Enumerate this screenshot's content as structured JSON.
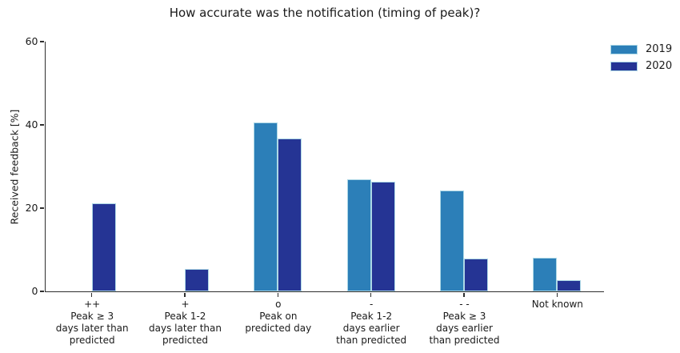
{
  "chart_data": {
    "type": "bar",
    "title": "How accurate was the notification (timing of peak)?",
    "ylabel": "Received feedback [%]",
    "ylim": [
      0,
      60
    ],
    "yticks": [
      0,
      20,
      40,
      60
    ],
    "grid": false,
    "legend_position": "upper right, outside plot",
    "categories": [
      "++\nPeak ≥ 3\ndays later than\npredicted",
      "+\nPeak 1-2\ndays later than\npredicted",
      "o\nPeak on\npredicted day",
      "-\nPeak 1-2\ndays earlier\nthan predicted",
      "- -\nPeak ≥ 3\ndays earlier\nthan predicted",
      "Not known"
    ],
    "series": [
      {
        "name": "2019",
        "color": "#2c7fb8",
        "values": [
          0.0,
          0.0,
          40.5,
          27.0,
          24.3,
          8.1
        ]
      },
      {
        "name": "2020",
        "color": "#253494",
        "values": [
          21.1,
          5.3,
          36.8,
          26.3,
          7.9,
          2.6
        ]
      }
    ],
    "bar_edge_color": "#add8e6",
    "axis_color": "#2e2e2e",
    "text_color": "#1a1a1a",
    "background_color": "#ffffff"
  }
}
